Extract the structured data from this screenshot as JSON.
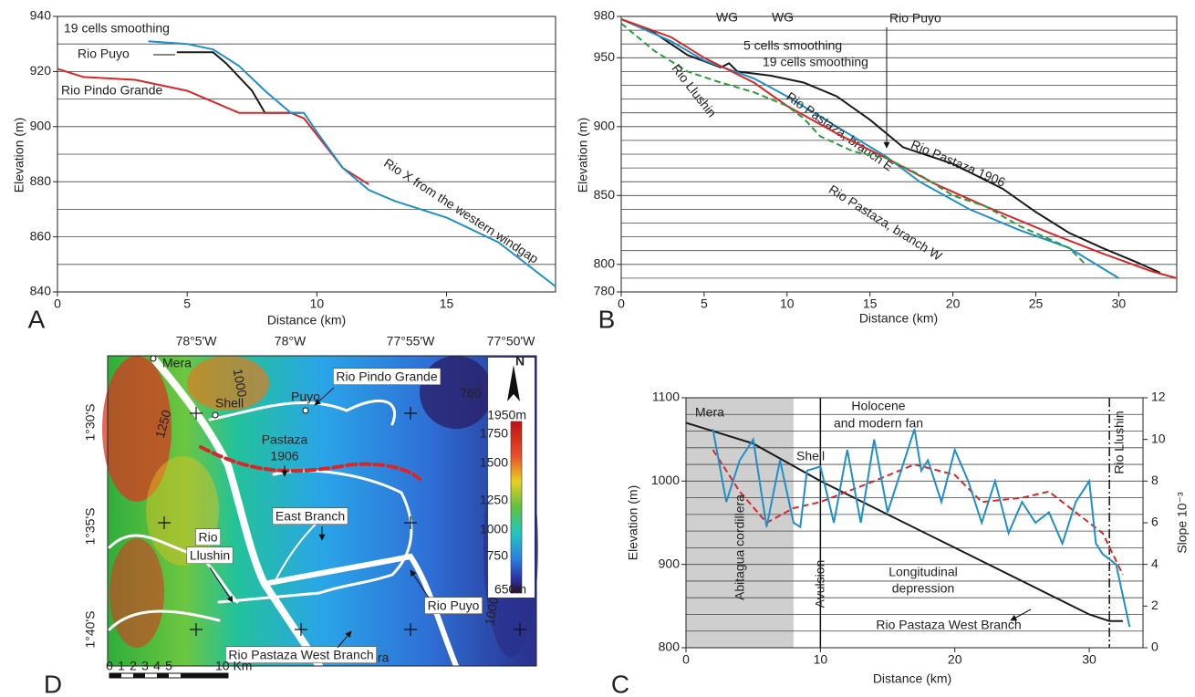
{
  "chart_data": [
    {
      "type": "line",
      "panel_label": "A",
      "x_label": "Distance (km)",
      "y_label": "Elevation (m)",
      "xlim": [
        0,
        19.2
      ],
      "ylim": [
        840,
        940
      ],
      "xticks": [
        0,
        5,
        10,
        15
      ],
      "yticks": [
        840,
        860,
        880,
        900,
        920,
        940
      ],
      "ygrid": [
        850,
        870,
        890,
        910,
        930
      ],
      "annotations": [
        "19 cells smoothing"
      ],
      "series": [
        {
          "name": "Rio Puyo",
          "color": "#1a1a1a",
          "x": [
            4.6,
            6.0,
            6.5,
            7.0,
            7.5,
            8.0,
            9.0,
            9.4
          ],
          "values": [
            927,
            927,
            923,
            918,
            913,
            905,
            905,
            905
          ]
        },
        {
          "name": "Rio Pindo Grande",
          "color": "#d62828",
          "x": [
            0,
            1,
            3,
            5,
            6,
            7,
            9,
            9.5,
            10,
            11,
            12
          ],
          "values": [
            921,
            918,
            917,
            913,
            909,
            905,
            905,
            903,
            897,
            885,
            879
          ]
        },
        {
          "name": "Rio X from the western windgap",
          "color": "#1f8fc8",
          "x": [
            3.5,
            5,
            6,
            7,
            8,
            9,
            9.5,
            10,
            11,
            12,
            13,
            15,
            17,
            19.2
          ],
          "values": [
            931,
            930,
            928,
            922,
            913,
            905,
            905,
            898,
            885,
            877,
            873,
            867,
            858,
            842
          ]
        }
      ]
    },
    {
      "type": "line",
      "panel_label": "B",
      "x_label": "Distance (km)",
      "y_label": "Elevation (m)",
      "xlim": [
        0,
        33.5
      ],
      "ylim": [
        780,
        980
      ],
      "xticks": [
        0,
        5,
        10,
        15,
        20,
        25,
        30
      ],
      "yticks": [
        780,
        800,
        850,
        900,
        950,
        980
      ],
      "ygrid": [
        790,
        810,
        820,
        830,
        840,
        860,
        870,
        880,
        890,
        910,
        920,
        930,
        940,
        960,
        970
      ],
      "annotations": [
        "WG",
        "WG",
        "5 cells smoothing",
        "19 cells smoothing",
        "Rio Puyo"
      ],
      "series": [
        {
          "name": "Rio Pastaza 1906",
          "color": "#1a1a1a",
          "x": [
            0,
            2,
            4,
            6,
            6.5,
            7,
            9,
            11,
            13,
            15,
            16,
            17,
            20,
            23,
            25,
            27,
            29,
            31,
            32.5
          ],
          "values": [
            978,
            968,
            952,
            943,
            946,
            940,
            937,
            932,
            922,
            905,
            895,
            885,
            873,
            855,
            838,
            823,
            812,
            802,
            794
          ]
        },
        {
          "name": "Rio Pastaza, branch E",
          "color": "#1f8fc8",
          "x": [
            0,
            3,
            5,
            8,
            10,
            13,
            16,
            18,
            21,
            24,
            27,
            30
          ],
          "values": [
            978,
            962,
            948,
            935,
            922,
            900,
            878,
            860,
            840,
            825,
            812,
            790
          ]
        },
        {
          "name": "Rio Pastaza, branch W",
          "color": "#d62828",
          "x": [
            0,
            3,
            5,
            8,
            10,
            13,
            16,
            19,
            22,
            26,
            29,
            32,
            33.5
          ],
          "values": [
            978,
            965,
            950,
            932,
            915,
            895,
            877,
            858,
            842,
            822,
            808,
            795,
            790
          ]
        },
        {
          "name": "Rio Llushin",
          "color": "#2a9d3a",
          "dashed": true,
          "x": [
            0,
            2,
            4,
            6,
            8,
            10,
            11,
            12,
            14,
            16,
            18,
            20,
            22,
            24,
            27,
            28
          ],
          "values": [
            975,
            955,
            940,
            932,
            925,
            915,
            906,
            893,
            882,
            877,
            865,
            850,
            842,
            828,
            812,
            800
          ]
        }
      ]
    },
    {
      "type": "line",
      "panel_label": "C",
      "x_label": "Distance (km)",
      "y_label": "Elevation (m)",
      "y2_label": "Slope 10⁻³",
      "xlim": [
        0,
        34
      ],
      "ylim": [
        800,
        1100
      ],
      "y2lim": [
        0,
        12
      ],
      "xticks": [
        0,
        10,
        20,
        30
      ],
      "yticks": [
        800,
        900,
        1000,
        1100
      ],
      "y2ticks": [
        0,
        2,
        4,
        6,
        8,
        10,
        12
      ],
      "ygrid": [
        820,
        840,
        860,
        880,
        920,
        940,
        960,
        980,
        1020,
        1040,
        1060,
        1080
      ],
      "shade_xlim": [
        0,
        8
      ],
      "vlines": [
        10,
        31.5
      ],
      "annotations": [
        "Mera",
        "Shell",
        "Holocene",
        "and modern fan",
        "Abitagua cordillera",
        "Avulsion",
        "Longitudinal",
        "depression",
        "Rio Llushin"
      ],
      "series": [
        {
          "name": "Rio Pastaza West Branch",
          "color": "#1a1a1a",
          "x": [
            0,
            5,
            10,
            15,
            20,
            25,
            30,
            31.5,
            32.5
          ],
          "values": [
            1070,
            1045,
            1000,
            960,
            920,
            880,
            840,
            832,
            832
          ]
        },
        {
          "color": "#d62828",
          "dashed": true,
          "axis": "y2",
          "x": [
            2,
            4,
            6,
            8,
            10,
            12,
            14,
            17,
            20,
            22,
            25,
            27,
            29,
            31,
            32.5
          ],
          "values": [
            9.5,
            7.5,
            6,
            6.7,
            7,
            7.5,
            8,
            8.8,
            8.3,
            7,
            7.2,
            7.5,
            6.5,
            5.5,
            3.5
          ]
        },
        {
          "color": "#1f8fc8",
          "axis": "y2",
          "x": [
            2,
            3,
            4,
            5,
            6,
            7,
            8,
            8.5,
            9,
            10,
            11,
            12,
            13,
            14,
            15,
            16,
            17,
            17.5,
            18,
            19,
            20,
            21,
            22,
            23,
            24,
            25,
            26,
            27,
            28,
            29,
            30,
            30.5,
            31,
            32,
            33
          ],
          "values": [
            10.5,
            7,
            9,
            10,
            5.8,
            9,
            6,
            5.8,
            8.5,
            8.7,
            6,
            9.5,
            6,
            10,
            6.5,
            8.5,
            10.5,
            8.5,
            9,
            7,
            9.5,
            8,
            6,
            8,
            5.5,
            7,
            6,
            6.5,
            5,
            7,
            8,
            5,
            4.5,
            4,
            1
          ]
        }
      ]
    }
  ],
  "map": {
    "panel_label": "D",
    "lon_labels": [
      "78°5'W",
      "78°W",
      "77°55'W",
      "77°50'W"
    ],
    "lat_labels": [
      "1°30'S",
      "1°35'S",
      "1°40'S"
    ],
    "places": [
      "Mera",
      "Shell",
      "Puyo",
      "Palora"
    ],
    "river_labels": [
      "Rio Pindo Grande",
      "East Branch",
      "Rio",
      "Llushin",
      "Rio Puyo",
      "Rio Pastaza West Branch"
    ],
    "pastaza_1906": [
      "Pastaza",
      "1906"
    ],
    "contour_labels": [
      "1000",
      "1250",
      "760",
      "1000"
    ],
    "north": "N",
    "colorbar_labels": [
      "1950m",
      "1750",
      "1500",
      "1250",
      "1000",
      "750",
      "650m"
    ],
    "scale_labels": [
      "0",
      "1",
      "2",
      "3",
      "4",
      "5",
      "10 Km"
    ]
  }
}
